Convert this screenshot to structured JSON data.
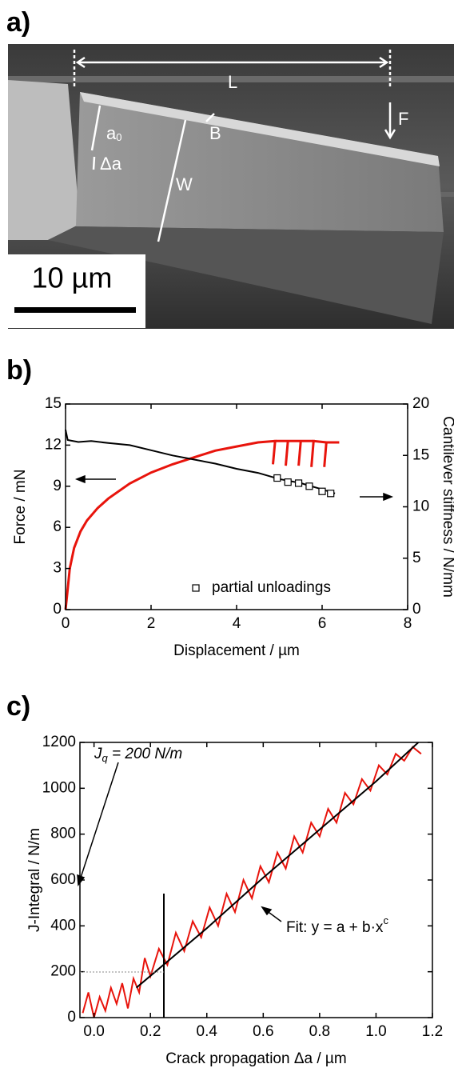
{
  "panel_labels": [
    "a)",
    "b)",
    "c)"
  ],
  "image": {
    "labels": {
      "L": "L",
      "F": "F",
      "a": "a",
      "a_sub": "0",
      "da": "Δa",
      "B": "B",
      "W": "W"
    },
    "scale_bar": "10 µm"
  },
  "chart_data": [
    {
      "type": "line",
      "x_label": "Displacement / µm",
      "y_label": "Force / mN",
      "y2_label": "Cantilever stiffness / N/mm",
      "xlim": [
        0,
        8
      ],
      "xticks": [
        0,
        2,
        4,
        6,
        8
      ],
      "ylim": [
        0,
        15
      ],
      "yticks": [
        0,
        3,
        6,
        9,
        12,
        15
      ],
      "y2lim": [
        0,
        20
      ],
      "y2ticks": [
        0,
        5,
        10,
        15,
        20
      ],
      "grid": false,
      "legend": "lower right",
      "series": [
        {
          "color": "#e8140c",
          "x": [
            0,
            0.05,
            0.1,
            0.2,
            0.35,
            0.5,
            0.75,
            1,
            1.5,
            2,
            2.5,
            3,
            3.5,
            4,
            4.5,
            4.9,
            4.85,
            4.9,
            5.2,
            5.15,
            5.2,
            5.5,
            5.45,
            5.5,
            5.8,
            5.75,
            5.8,
            6.1,
            6.05,
            6.1,
            6.4
          ],
          "values": [
            0,
            1.5,
            3,
            4.5,
            5.7,
            6.5,
            7.4,
            8.1,
            9.2,
            10,
            10.6,
            11.1,
            11.6,
            11.9,
            12.2,
            12.3,
            10.6,
            12.3,
            12.3,
            10.5,
            12.3,
            12.3,
            10.5,
            12.3,
            12.3,
            10.4,
            12.3,
            12.2,
            10.4,
            12.2,
            12.2
          ]
        },
        {
          "color": "#000000",
          "axis": "y2",
          "x": [
            0,
            0.05,
            0.3,
            0.6,
            1,
            1.5,
            2,
            2.5,
            3,
            3.5,
            4,
            4.5,
            5,
            5.5,
            6,
            6.3
          ],
          "values": [
            17.5,
            16.5,
            16.3,
            16.4,
            16.2,
            16.0,
            15.5,
            15.0,
            14.6,
            14.2,
            13.7,
            13.3,
            12.7,
            12.3,
            11.7,
            11.3
          ]
        },
        {
          "name": "partial unloadings",
          "type": "scatter",
          "color": "#000000",
          "axis": "y2",
          "x": [
            4.95,
            5.2,
            5.45,
            5.7,
            6.0,
            6.2
          ],
          "values": [
            12.8,
            12.4,
            12.3,
            12.0,
            11.5,
            11.3
          ]
        }
      ]
    },
    {
      "type": "line",
      "x_label": "Crack propagation Δa / µm",
      "y_label": "J-Integral / N/m",
      "xlim": [
        -0.05,
        1.2
      ],
      "xticks": [
        {
          "value": 0,
          "label": "0.0"
        },
        0.2,
        0.4,
        0.6,
        0.8,
        {
          "value": 1,
          "label": "1.0"
        },
        1.2
      ],
      "ylim": [
        0,
        1200
      ],
      "yticks": [
        0,
        200,
        400,
        600,
        800,
        1000,
        1200
      ],
      "grid": false,
      "annotations": {
        "jq": [
          "J",
          "q",
          " = 200 N/m"
        ],
        "fit": [
          "Fit: y = a + b·x",
          "c"
        ]
      },
      "series": [
        {
          "color": "#e8140c",
          "x": [
            -0.04,
            -0.02,
            0,
            0.02,
            0.04,
            0.06,
            0.08,
            0.1,
            0.12,
            0.14,
            0.16,
            0.18,
            0.2,
            0.23,
            0.26,
            0.29,
            0.32,
            0.35,
            0.38,
            0.41,
            0.44,
            0.47,
            0.5,
            0.53,
            0.56,
            0.59,
            0.62,
            0.65,
            0.68,
            0.71,
            0.74,
            0.77,
            0.8,
            0.83,
            0.86,
            0.89,
            0.92,
            0.95,
            0.98,
            1.01,
            1.04,
            1.07,
            1.1,
            1.13,
            1.16
          ],
          "values": [
            20,
            110,
            0,
            90,
            30,
            130,
            60,
            150,
            40,
            170,
            110,
            260,
            180,
            300,
            230,
            370,
            290,
            420,
            350,
            480,
            400,
            540,
            460,
            600,
            520,
            660,
            590,
            720,
            650,
            790,
            720,
            850,
            790,
            910,
            850,
            980,
            930,
            1040,
            990,
            1100,
            1060,
            1150,
            1120,
            1180,
            1150
          ]
        },
        {
          "color": "#000000",
          "x": [
            0.15,
            0.4,
            0.6,
            0.8,
            1.0,
            1.15
          ],
          "values": [
            130,
            390,
            610,
            820,
            1030,
            1200
          ]
        }
      ]
    }
  ]
}
